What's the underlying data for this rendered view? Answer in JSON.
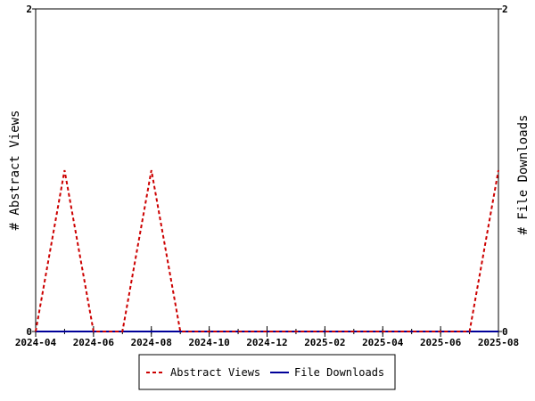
{
  "chart_data": {
    "type": "line",
    "ylabel_left": "# Abstract Views",
    "ylabel_right": "# File Downloads",
    "x_ticks": [
      "2024-04",
      "2024-06",
      "2024-08",
      "2024-10",
      "2024-12",
      "2025-02",
      "2025-04",
      "2025-06",
      "2025-08"
    ],
    "x_range": [
      "2024-04",
      "2025-08"
    ],
    "ylim_left": [
      0,
      2
    ],
    "ylim_right": [
      0,
      2
    ],
    "y_ticks_left": [
      "0",
      "2"
    ],
    "y_ticks_right": [
      "0",
      "2"
    ],
    "x": [
      "2024-04",
      "2024-05",
      "2024-06",
      "2024-07",
      "2024-08",
      "2024-09",
      "2024-10",
      "2024-11",
      "2024-12",
      "2025-01",
      "2025-02",
      "2025-03",
      "2025-04",
      "2025-05",
      "2025-06",
      "2025-07",
      "2025-08"
    ],
    "series": [
      {
        "name": "Abstract Views",
        "axis": "left",
        "color": "#cc0000",
        "dashed": true,
        "values": [
          0,
          1,
          0,
          0,
          1,
          0,
          0,
          0,
          0,
          0,
          0,
          0,
          0,
          0,
          0,
          0,
          1
        ]
      },
      {
        "name": "File Downloads",
        "axis": "right",
        "color": "#000099",
        "dashed": false,
        "values": [
          0,
          0,
          0,
          0,
          0,
          0,
          0,
          0,
          0,
          0,
          0,
          0,
          0,
          0,
          0,
          0,
          0
        ]
      }
    ],
    "grid": false,
    "legend_position": "bottom"
  }
}
